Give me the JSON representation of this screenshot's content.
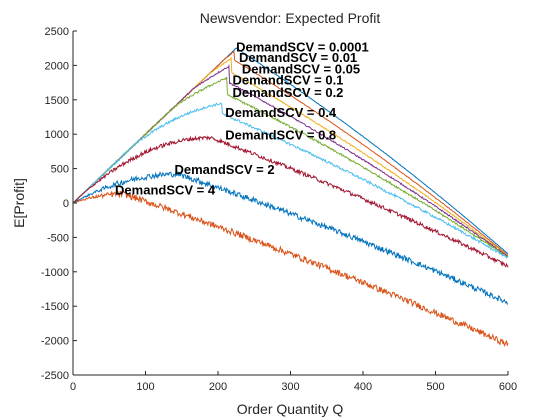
{
  "chart_data": {
    "type": "line",
    "title": "Newsvendor: Expected Profit",
    "xlabel": "Order Quantity Q",
    "ylabel": "E[Profit]",
    "xlim": [
      0,
      600
    ],
    "ylim": [
      -2500,
      2500
    ],
    "xticks": [
      0,
      100,
      200,
      300,
      400,
      500,
      600
    ],
    "yticks": [
      -2500,
      -2000,
      -1500,
      -1000,
      -500,
      0,
      500,
      1000,
      1500,
      2000,
      2500
    ],
    "grid": false,
    "slope_left": 10,
    "slope_right": -7.5,
    "series": [
      {
        "name": "DemandSCV = 0.0001",
        "color": "#0072BD",
        "peak": [
          225,
          2250
        ],
        "end": 600,
        "noise": 3
      },
      {
        "name": "DemandSCV = 0.01",
        "color": "#D95319",
        "peak": [
          222,
          2080
        ],
        "end": 600,
        "noise": 5
      },
      {
        "name": "DemandSCV = 0.05",
        "color": "#EDB120",
        "peak": [
          218,
          1900
        ],
        "end": 600,
        "noise": 8
      },
      {
        "name": "DemandSCV = 0.1",
        "color": "#7E2F8E",
        "peak": [
          215,
          1750
        ],
        "end": 600,
        "noise": 10
      },
      {
        "name": "DemandSCV = 0.2",
        "color": "#77AC30",
        "peak": [
          212,
          1580
        ],
        "end": 600,
        "noise": 14
      },
      {
        "name": "DemandSCV = 0.4",
        "color": "#4DBEEE",
        "peak": [
          205,
          1300
        ],
        "end": 600,
        "noise": 18
      },
      {
        "name": "DemandSCV = 0.8",
        "color": "#A2142F",
        "peak": [
          190,
          950
        ],
        "end": 600,
        "noise": 28
      },
      {
        "name": "DemandSCV = 2",
        "color": "#0072BD",
        "peak": [
          145,
          420
        ],
        "end": 600,
        "noise": 40
      },
      {
        "name": "DemandSCV = 4",
        "color": "#D95319",
        "peak": [
          70,
          130
        ],
        "end": 600,
        "noise": 45
      }
    ],
    "final_values": [
      -740,
      -760,
      -770,
      -780,
      -790,
      -800,
      -920,
      -1450,
      -2060
    ],
    "annotations": [
      {
        "text": "DemandSCV = 0.0001",
        "x": 225,
        "y": 2200
      },
      {
        "text": "DemandSCV = 0.01",
        "x": 229,
        "y": 2050
      },
      {
        "text": "DemandSCV = 0.05",
        "x": 233,
        "y": 1880
      },
      {
        "text": "DemandSCV = 0.1",
        "x": 220,
        "y": 1720
      },
      {
        "text": "DemandSCV = 0.2",
        "x": 220,
        "y": 1540
      },
      {
        "text": "DemandSCV = 0.4",
        "x": 210,
        "y": 1250
      },
      {
        "text": "DemandSCV = 0.8",
        "x": 210,
        "y": 920
      },
      {
        "text": "DemandSCV = 2",
        "x": 140,
        "y": 420
      },
      {
        "text": "DemandSCV = 4",
        "x": 58,
        "y": 120
      }
    ]
  }
}
